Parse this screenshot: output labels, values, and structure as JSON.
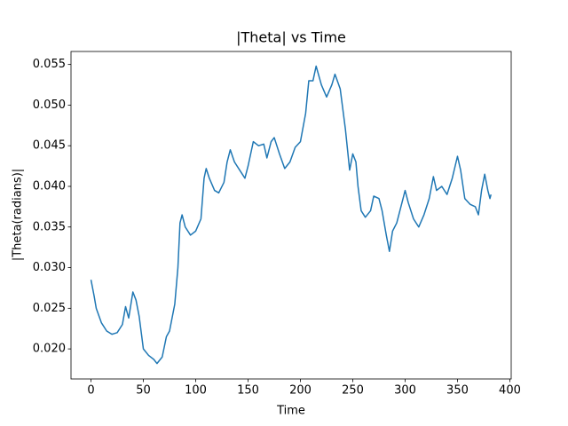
{
  "chart_data": {
    "type": "line",
    "title": "|Theta| vs Time",
    "xlabel": "Time",
    "ylabel": "|Theta(radians)|",
    "color": "#1f77b4",
    "x": [
      0,
      3,
      5,
      10,
      15,
      20,
      25,
      30,
      33,
      36,
      40,
      43,
      46,
      50,
      55,
      60,
      63,
      68,
      72,
      75,
      80,
      83,
      85,
      87,
      90,
      95,
      100,
      105,
      108,
      110,
      113,
      118,
      122,
      127,
      130,
      133,
      137,
      142,
      147,
      150,
      155,
      160,
      165,
      168,
      172,
      175,
      180,
      185,
      190,
      195,
      200,
      205,
      208,
      212,
      215,
      220,
      225,
      230,
      233,
      238,
      243,
      247,
      250,
      253,
      255,
      258,
      262,
      267,
      270,
      275,
      278,
      282,
      285,
      288,
      292,
      297,
      300,
      303,
      308,
      313,
      318,
      323,
      327,
      330,
      335,
      340,
      345,
      350,
      353,
      357,
      362,
      367,
      370,
      373,
      376,
      379,
      381,
      382
    ],
    "values": [
      0.0285,
      0.0265,
      0.025,
      0.0232,
      0.0222,
      0.0218,
      0.022,
      0.023,
      0.0252,
      0.0238,
      0.027,
      0.026,
      0.024,
      0.02,
      0.0192,
      0.0187,
      0.0182,
      0.019,
      0.0215,
      0.0222,
      0.0255,
      0.03,
      0.0355,
      0.0365,
      0.035,
      0.034,
      0.0345,
      0.036,
      0.041,
      0.0422,
      0.041,
      0.0395,
      0.0392,
      0.0405,
      0.043,
      0.0445,
      0.043,
      0.042,
      0.041,
      0.0425,
      0.0455,
      0.045,
      0.0452,
      0.0435,
      0.0455,
      0.046,
      0.044,
      0.0422,
      0.043,
      0.0448,
      0.0455,
      0.049,
      0.053,
      0.053,
      0.0548,
      0.0525,
      0.051,
      0.0525,
      0.0538,
      0.052,
      0.047,
      0.042,
      0.044,
      0.043,
      0.04,
      0.037,
      0.0362,
      0.037,
      0.0388,
      0.0385,
      0.037,
      0.034,
      0.032,
      0.0345,
      0.0355,
      0.038,
      0.0395,
      0.038,
      0.036,
      0.035,
      0.0365,
      0.0385,
      0.0412,
      0.0395,
      0.04,
      0.039,
      0.041,
      0.0437,
      0.042,
      0.0385,
      0.0378,
      0.0375,
      0.0365,
      0.0395,
      0.0415,
      0.0395,
      0.0385,
      0.039
    ],
    "xlim": [
      -19.1,
      401.3
    ],
    "xticks": [
      0,
      50,
      100,
      150,
      200,
      250,
      300,
      350,
      400
    ],
    "ylim": [
      0.0163,
      0.0566
    ],
    "yticks": [
      {
        "value": 0.02,
        "label": "0.020"
      },
      {
        "value": 0.025,
        "label": "0.025"
      },
      {
        "value": 0.03,
        "label": "0.030"
      },
      {
        "value": 0.035,
        "label": "0.035"
      },
      {
        "value": 0.04,
        "label": "0.040"
      },
      {
        "value": 0.045,
        "label": "0.045"
      },
      {
        "value": 0.05,
        "label": "0.050"
      },
      {
        "value": 0.055,
        "label": "0.055"
      }
    ],
    "grid": false
  }
}
